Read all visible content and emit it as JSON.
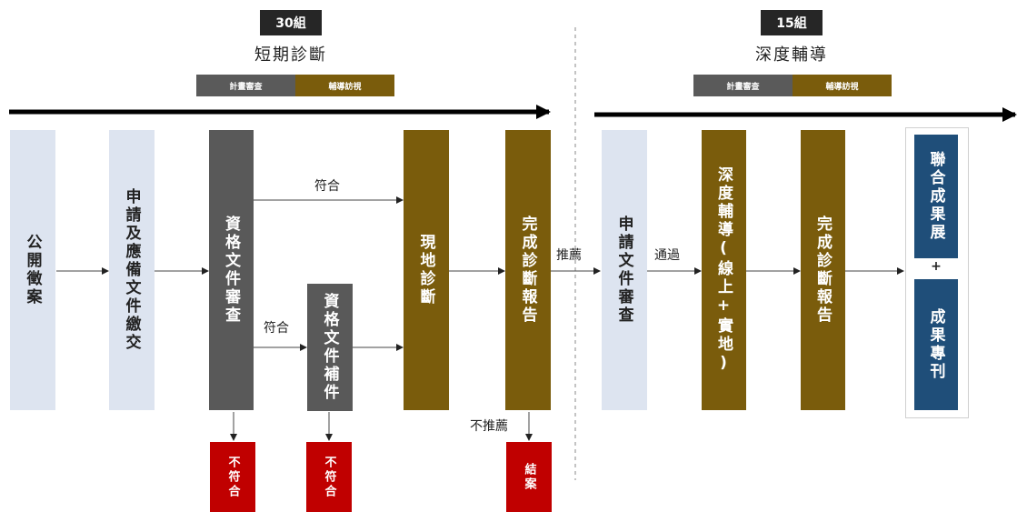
{
  "phase1": {
    "count": "30組",
    "title": "短期診斷",
    "legend": [
      "計畫審查",
      "輔導訪視"
    ]
  },
  "phase2": {
    "count": "15組",
    "title": "深度輔導",
    "legend": [
      "計畫審查",
      "輔導訪視"
    ]
  },
  "nodes": {
    "public_call": "公開徵案",
    "apply_submit": "申請及應備文件繳交",
    "qual_review": "資格文件審查",
    "qual_supplement": "資格文件補件",
    "onsite_diagnosis": "現地診斷",
    "diagnosis_report": "完成診斷報告",
    "apply_review": "申請文件審查",
    "deep_guidance": "深度輔導(線上+實地)",
    "final_report": "完成診斷報告",
    "joint_exhibition": "聯合成果展",
    "results_journal": "成果專刊",
    "fail_1": "不符合",
    "fail_2": "不符合",
    "close_case": "結案"
  },
  "edges": {
    "qualify_top": "符合",
    "qualify_mid": "符合",
    "recommend": "推薦",
    "not_recommend": "不推薦",
    "pass": "通過",
    "plus": "+"
  }
}
